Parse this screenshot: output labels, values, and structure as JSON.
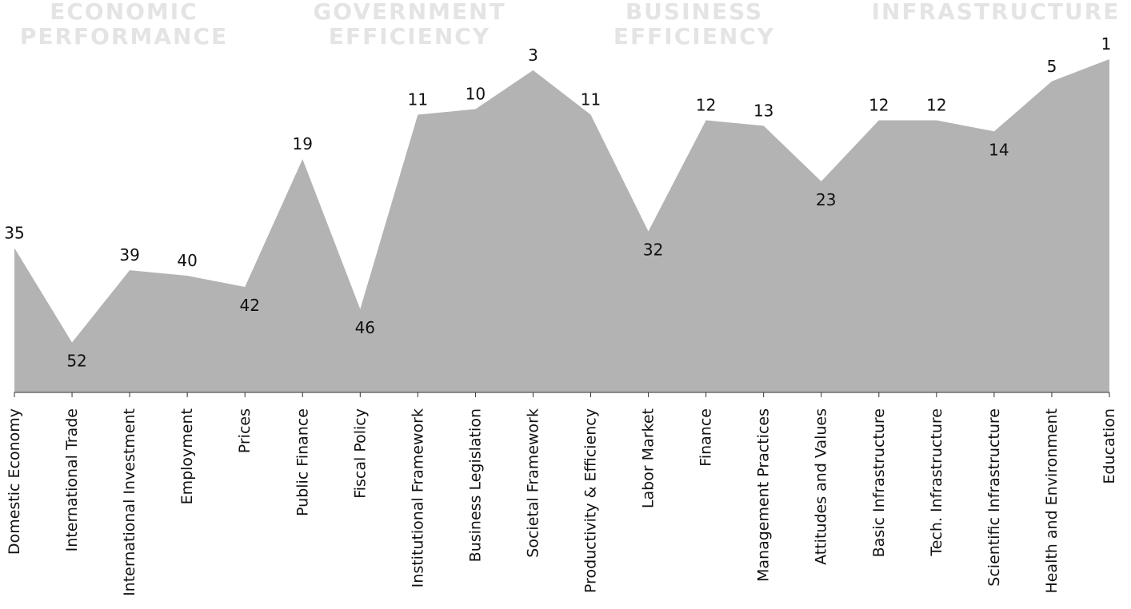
{
  "chart_data": {
    "type": "area",
    "groups": [
      {
        "title_lines": [
          "ECONOMIC",
          "PERFORMANCE"
        ],
        "categories": [
          "Domestic Economy",
          "International Trade",
          "International Investment",
          "Employment",
          "Prices"
        ]
      },
      {
        "title_lines": [
          "GOVERNMENT",
          "EFFICIENCY"
        ],
        "categories": [
          "Public Finance",
          "Fiscal Policy",
          "Institutional Framework",
          "Business Legislation",
          "Societal Framework"
        ]
      },
      {
        "title_lines": [
          "BUSINESS",
          "EFFICIENCY"
        ],
        "categories": [
          "Productivity & Efficiency",
          "Labor Market",
          "Finance",
          "Management Practices",
          "Attitudes and Values"
        ]
      },
      {
        "title_lines": [
          "INFRASTRUCTURE"
        ],
        "categories": [
          "Basic Infrastructure",
          "Tech. Infrastructure",
          "Scientific Infrastructure",
          "Health and Environment",
          "Education"
        ]
      }
    ],
    "categories": [
      "Domestic Economy",
      "International Trade",
      "International Investment",
      "Employment",
      "Prices",
      "Public Finance",
      "Fiscal Policy",
      "Institutional Framework",
      "Business Legislation",
      "Societal Framework",
      "Productivity & Efficiency",
      "Labor Market",
      "Finance",
      "Management Practices",
      "Attitudes and Values",
      "Basic Infrastructure",
      "Tech. Infrastructure",
      "Scientific Infrastructure",
      "Health and Environment",
      "Education"
    ],
    "values": [
      35,
      52,
      39,
      40,
      42,
      19,
      46,
      11,
      10,
      3,
      11,
      32,
      12,
      13,
      23,
      12,
      12,
      14,
      5,
      1
    ],
    "label_positions": [
      "above",
      "below",
      "above",
      "above",
      "below",
      "above",
      "below",
      "above",
      "above",
      "above",
      "above",
      "below",
      "above",
      "above",
      "below",
      "above",
      "above",
      "below",
      "above",
      "above"
    ],
    "y_scale": "rank, inverted (1 at top)",
    "ylim": [
      61,
      1
    ],
    "fill_color": "#b3b3b3",
    "group_title_color": "#e4e4e4",
    "grid": false,
    "legend": "none"
  }
}
